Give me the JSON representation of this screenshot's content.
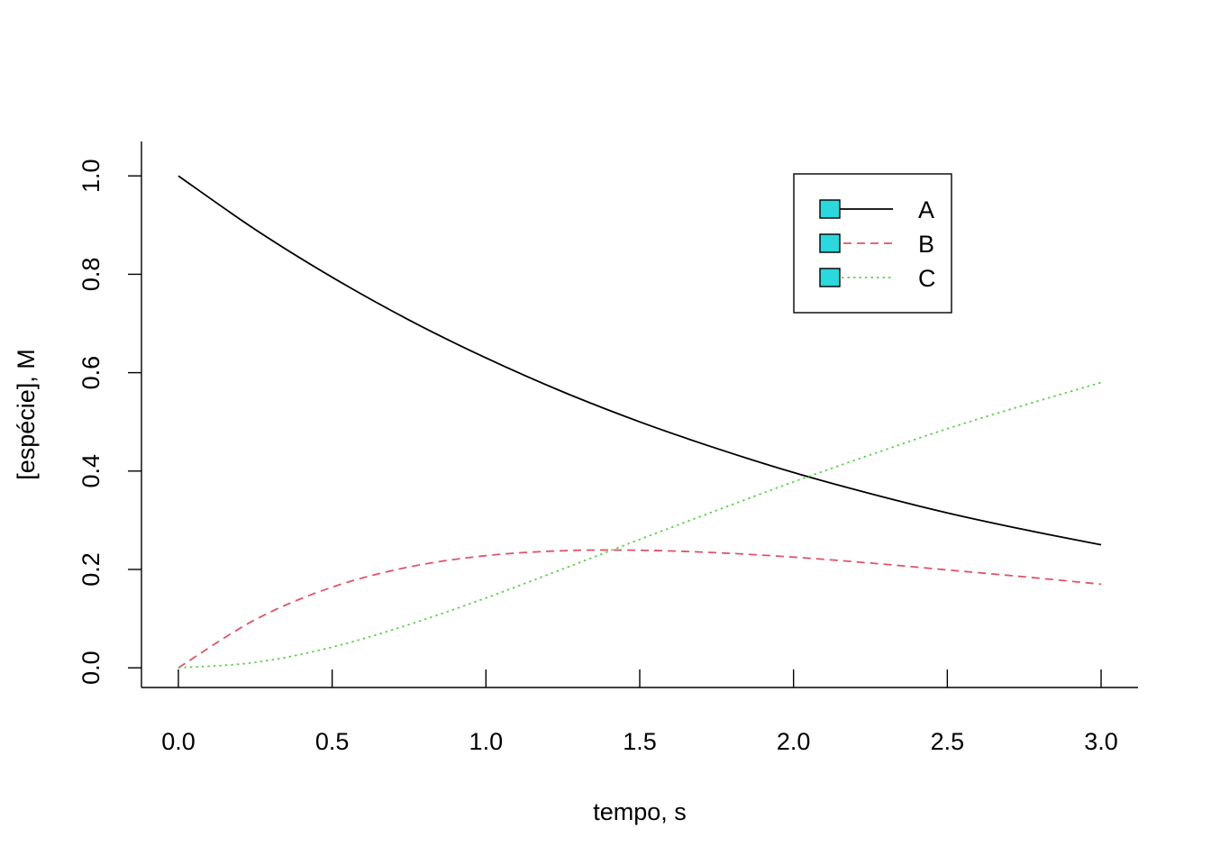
{
  "chart_data": {
    "type": "line",
    "title": "",
    "xlabel": "tempo, s",
    "ylabel": "[espécie], M",
    "xlim": [
      -0.12,
      3.12
    ],
    "ylim": [
      -0.04,
      1.07
    ],
    "xticks": [
      0.0,
      0.5,
      1.0,
      1.5,
      2.0,
      2.5,
      3.0
    ],
    "xtick_labels": [
      "0.0",
      "0.5",
      "1.0",
      "1.5",
      "2.0",
      "2.5",
      "3.0"
    ],
    "yticks": [
      0.0,
      0.2,
      0.4,
      0.6,
      0.8,
      1.0
    ],
    "ytick_labels": [
      "0.0",
      "0.2",
      "0.4",
      "0.6",
      "0.8",
      "1.0"
    ],
    "grid": false,
    "legend_position": "top-right",
    "x": [
      0.0,
      0.25,
      0.5,
      0.75,
      1.0,
      1.25,
      1.5,
      1.75,
      2.0,
      2.25,
      2.5,
      2.75,
      3.0
    ],
    "series": [
      {
        "name": "A",
        "color": "#000000",
        "dash": "solid",
        "values": [
          1.0,
          0.891,
          0.794,
          0.707,
          0.63,
          0.561,
          0.5,
          0.446,
          0.397,
          0.354,
          0.315,
          0.281,
          0.25
        ]
      },
      {
        "name": "B",
        "color": "#DF536B",
        "dash": "dashed",
        "values": [
          0.0,
          0.098,
          0.164,
          0.205,
          0.228,
          0.238,
          0.239,
          0.234,
          0.225,
          0.213,
          0.199,
          0.185,
          0.17
        ]
      },
      {
        "name": "C",
        "color": "#61D04F",
        "dash": "dotted",
        "values": [
          0.0,
          0.011,
          0.042,
          0.088,
          0.142,
          0.201,
          0.261,
          0.32,
          0.378,
          0.433,
          0.486,
          0.534,
          0.58
        ]
      }
    ],
    "legend_marker_color": "#2AD8DD"
  }
}
